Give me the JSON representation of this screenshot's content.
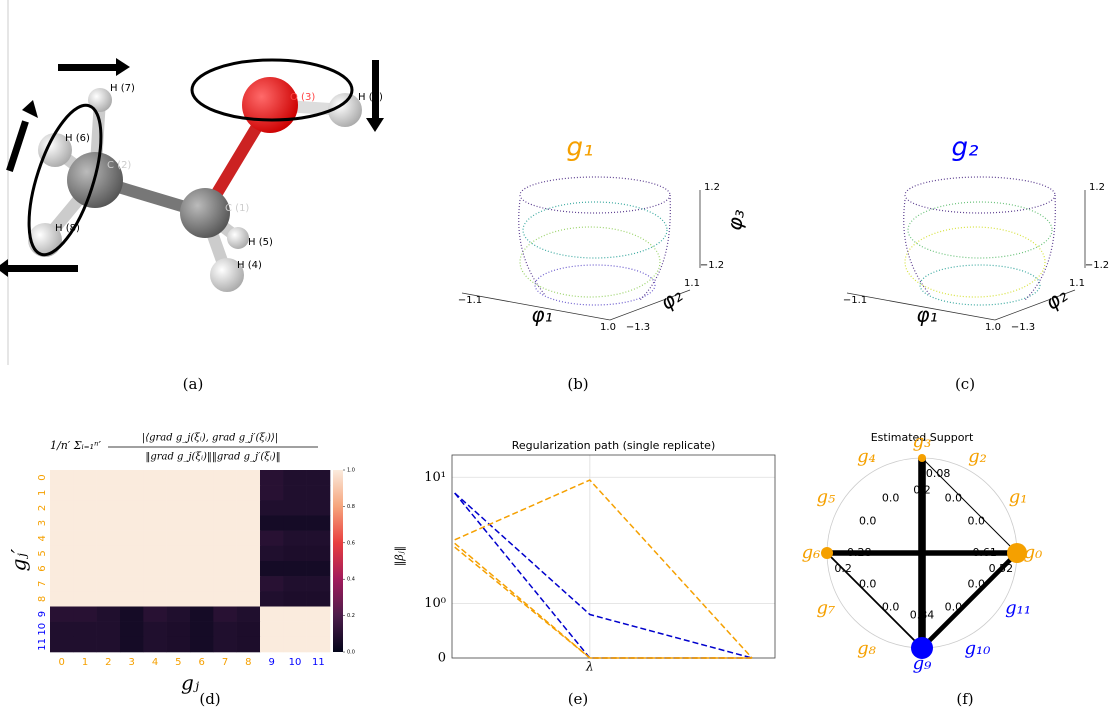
{
  "panel_a": {
    "atoms": [
      "H (7)",
      "H (6)",
      "C (2)",
      "H (8)",
      "O (3)",
      "H (9)",
      "C (1)",
      "H (5)",
      "H (4)"
    ],
    "caption": "(a)"
  },
  "panel_b": {
    "title": "g₁",
    "title_color": "#f5a000",
    "axes": [
      "φ₁",
      "φ₂",
      "φ₃"
    ],
    "tick_labels": [
      "−1.1",
      "1.0",
      "−1.3",
      "1.1",
      "1.2",
      "−1.2"
    ],
    "caption": "(b)"
  },
  "panel_c": {
    "title": "g₂",
    "title_color": "#0000ff",
    "axes": [
      "φ₁",
      "φ₂",
      "φ₃"
    ],
    "tick_labels": [
      "−1.1",
      "1.0",
      "−1.3",
      "1.1",
      "1.2",
      "−1.2"
    ],
    "caption": "(c)"
  },
  "panel_d": {
    "title": {
      "prefix": "1/n′ Σᵢ₌₁ⁿ′",
      "numerator": "|⟨grad g_j(ξᵢ), grad g_j′(ξᵢ)⟩|",
      "denominator": "‖grad g_j(ξᵢ)‖‖grad g_j′(ξᵢ)‖"
    },
    "xlabel": "gⱼ",
    "ylabel": "gⱼ′",
    "categories": [
      0,
      1,
      2,
      3,
      4,
      5,
      6,
      7,
      8,
      9,
      10,
      11
    ],
    "category_colors": [
      "#f5a000",
      "#f5a000",
      "#f5a000",
      "#f5a000",
      "#f5a000",
      "#f5a000",
      "#f5a000",
      "#f5a000",
      "#f5a000",
      "#0000ff",
      "#0000ff",
      "#0000ff"
    ],
    "values": [
      [
        1,
        1,
        1,
        1,
        1,
        1,
        1,
        1,
        1,
        0.1,
        0.08,
        0.08
      ],
      [
        1,
        1,
        1,
        1,
        1,
        1,
        1,
        1,
        1,
        0.1,
        0.08,
        0.08
      ],
      [
        1,
        1,
        1,
        1,
        1,
        1,
        1,
        1,
        1,
        0.08,
        0.08,
        0.08
      ],
      [
        1,
        1,
        1,
        1,
        1,
        1,
        1,
        1,
        1,
        0.05,
        0.05,
        0.05
      ],
      [
        1,
        1,
        1,
        1,
        1,
        1,
        1,
        1,
        1,
        0.1,
        0.08,
        0.08
      ],
      [
        1,
        1,
        1,
        1,
        1,
        1,
        1,
        1,
        1,
        0.08,
        0.07,
        0.07
      ],
      [
        1,
        1,
        1,
        1,
        1,
        1,
        1,
        1,
        1,
        0.05,
        0.05,
        0.05
      ],
      [
        1,
        1,
        1,
        1,
        1,
        1,
        1,
        1,
        1,
        0.1,
        0.08,
        0.08
      ],
      [
        1,
        1,
        1,
        1,
        1,
        1,
        1,
        1,
        1,
        0.08,
        0.07,
        0.07
      ],
      [
        0.1,
        0.1,
        0.08,
        0.05,
        0.1,
        0.08,
        0.05,
        0.1,
        0.08,
        1,
        1,
        1
      ],
      [
        0.08,
        0.08,
        0.08,
        0.05,
        0.08,
        0.07,
        0.05,
        0.08,
        0.07,
        1,
        1,
        1
      ],
      [
        0.08,
        0.08,
        0.08,
        0.05,
        0.08,
        0.07,
        0.05,
        0.08,
        0.07,
        1,
        1,
        1
      ]
    ],
    "colorbar_ticks": [
      {
        "value": 0,
        "label": "0.0"
      },
      {
        "value": 0.2,
        "label": "0.2"
      },
      {
        "value": 0.4,
        "label": "0.4"
      },
      {
        "value": 0.6,
        "label": "0.6"
      },
      {
        "value": 0.8,
        "label": "0.8"
      },
      {
        "value": 1,
        "label": "1.0"
      }
    ],
    "caption": "(d)"
  },
  "panel_e": {
    "type": "line",
    "title": "Regularization path (single replicate)",
    "ylabel": "‖βⱼ‖",
    "x": [
      0,
      1,
      2.2
    ],
    "series": [
      {
        "color": "#0000cc",
        "values": [
          7.5,
          0,
          0
        ]
      },
      {
        "color": "#0000cc",
        "values": [
          7.5,
          0.8,
          0
        ]
      },
      {
        "color": "#f5a000",
        "values": [
          3.2,
          9.5,
          0
        ]
      },
      {
        "color": "#f5a000",
        "values": [
          3.0,
          0,
          0
        ]
      },
      {
        "color": "#f5a000",
        "values": [
          2.8,
          0,
          0
        ]
      }
    ],
    "xlim": [
      -0.02,
      2.37
    ],
    "ylim": [
      0,
      15
    ],
    "yscale": "symlog",
    "yticks": [
      0,
      {
        "value": 1,
        "label": "10⁰"
      },
      {
        "value": 10,
        "label": "10¹"
      }
    ],
    "xticks": [
      {
        "value": 1,
        "label": "λ"
      }
    ],
    "grid": true,
    "caption": "(e)"
  },
  "panel_f": {
    "title": "Estimated Support",
    "nodes": [
      {
        "label": "g₀",
        "color": "#f5a000",
        "size": 10
      },
      {
        "label": "g₁",
        "color": "#f5a000",
        "size": 0
      },
      {
        "label": "g₂",
        "color": "#f5a000",
        "size": 0
      },
      {
        "label": "g₃",
        "color": "#f5a000",
        "size": 4
      },
      {
        "label": "g₄",
        "color": "#f5a000",
        "size": 0
      },
      {
        "label": "g₅",
        "color": "#f5a000",
        "size": 0
      },
      {
        "label": "g₆",
        "color": "#f5a000",
        "size": 6
      },
      {
        "label": "g₇",
        "color": "#f5a000",
        "size": 0
      },
      {
        "label": "g₈",
        "color": "#f5a000",
        "size": 0
      },
      {
        "label": "g₉",
        "color": "#0000ff",
        "size": 11
      },
      {
        "label": "g₁₀",
        "color": "#0000ff",
        "size": 0
      },
      {
        "label": "g₁₁",
        "color": "#0000ff",
        "size": 0
      }
    ],
    "edges": [
      {
        "from": 3,
        "to": 9,
        "weight": 0.2
      },
      {
        "from": 9,
        "to": 3,
        "weight": 0.84
      },
      {
        "from": 6,
        "to": 0,
        "weight": 0.28
      },
      {
        "from": 0,
        "to": 6,
        "weight": 0.61
      },
      {
        "from": 3,
        "to": 0,
        "weight": 0.08
      },
      {
        "from": 0,
        "to": 9,
        "weight": 0.52
      },
      {
        "from": 6,
        "to": 9,
        "weight": 0.2
      },
      {
        "from": 1,
        "to": 7,
        "weight": 0,
        "label": "0.0"
      },
      {
        "from": 2,
        "to": 8,
        "weight": 0,
        "label": "0.0"
      },
      {
        "from": 4,
        "to": 10,
        "weight": 0,
        "label": "0.0"
      },
      {
        "from": 5,
        "to": 11,
        "weight": 0,
        "label": "0.0"
      },
      {
        "from": 7,
        "to": 1,
        "weight": 0,
        "label": "0.0"
      },
      {
        "from": 8,
        "to": 2,
        "weight": 0,
        "label": "0.0"
      },
      {
        "from": 10,
        "to": 4,
        "weight": 0,
        "label": "0.0"
      },
      {
        "from": 11,
        "to": 5,
        "weight": 0,
        "label": "0.0"
      }
    ],
    "caption": "(f)"
  }
}
